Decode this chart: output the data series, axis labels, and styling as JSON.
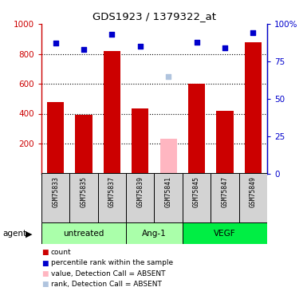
{
  "title": "GDS1923 / 1379322_at",
  "samples": [
    "GSM75833",
    "GSM75835",
    "GSM75837",
    "GSM75839",
    "GSM75841",
    "GSM75845",
    "GSM75847",
    "GSM75849"
  ],
  "bar_values": [
    480,
    390,
    820,
    435,
    null,
    600,
    420,
    880
  ],
  "bar_absent_values": [
    null,
    null,
    null,
    null,
    230,
    null,
    null,
    null
  ],
  "dot_values": [
    87,
    83,
    93,
    85,
    null,
    88,
    84,
    94
  ],
  "dot_absent_values": [
    null,
    null,
    null,
    null,
    65,
    null,
    null,
    null
  ],
  "ylim_left": [
    0,
    1000
  ],
  "ylim_right": [
    0,
    100
  ],
  "yticks_left": [
    200,
    400,
    600,
    800,
    1000
  ],
  "yticks_right": [
    0,
    25,
    50,
    75,
    100
  ],
  "bar_color": "#CC0000",
  "bar_absent_color": "#FFB6C1",
  "dot_color": "#0000CC",
  "dot_absent_color": "#B0C4DE",
  "sample_bg_color": "#D3D3D3",
  "group_labels": [
    "untreated",
    "Ang-1",
    "VEGF"
  ],
  "group_ranges": [
    [
      0,
      3
    ],
    [
      3,
      5
    ],
    [
      5,
      8
    ]
  ],
  "group_colors": [
    "#AAFFAA",
    "#AAFFAA",
    "#00EE44"
  ],
  "legend_items": [
    {
      "label": "count",
      "color": "#CC0000"
    },
    {
      "label": "percentile rank within the sample",
      "color": "#0000CC"
    },
    {
      "label": "value, Detection Call = ABSENT",
      "color": "#FFB6C1"
    },
    {
      "label": "rank, Detection Call = ABSENT",
      "color": "#B0C4DE"
    }
  ]
}
